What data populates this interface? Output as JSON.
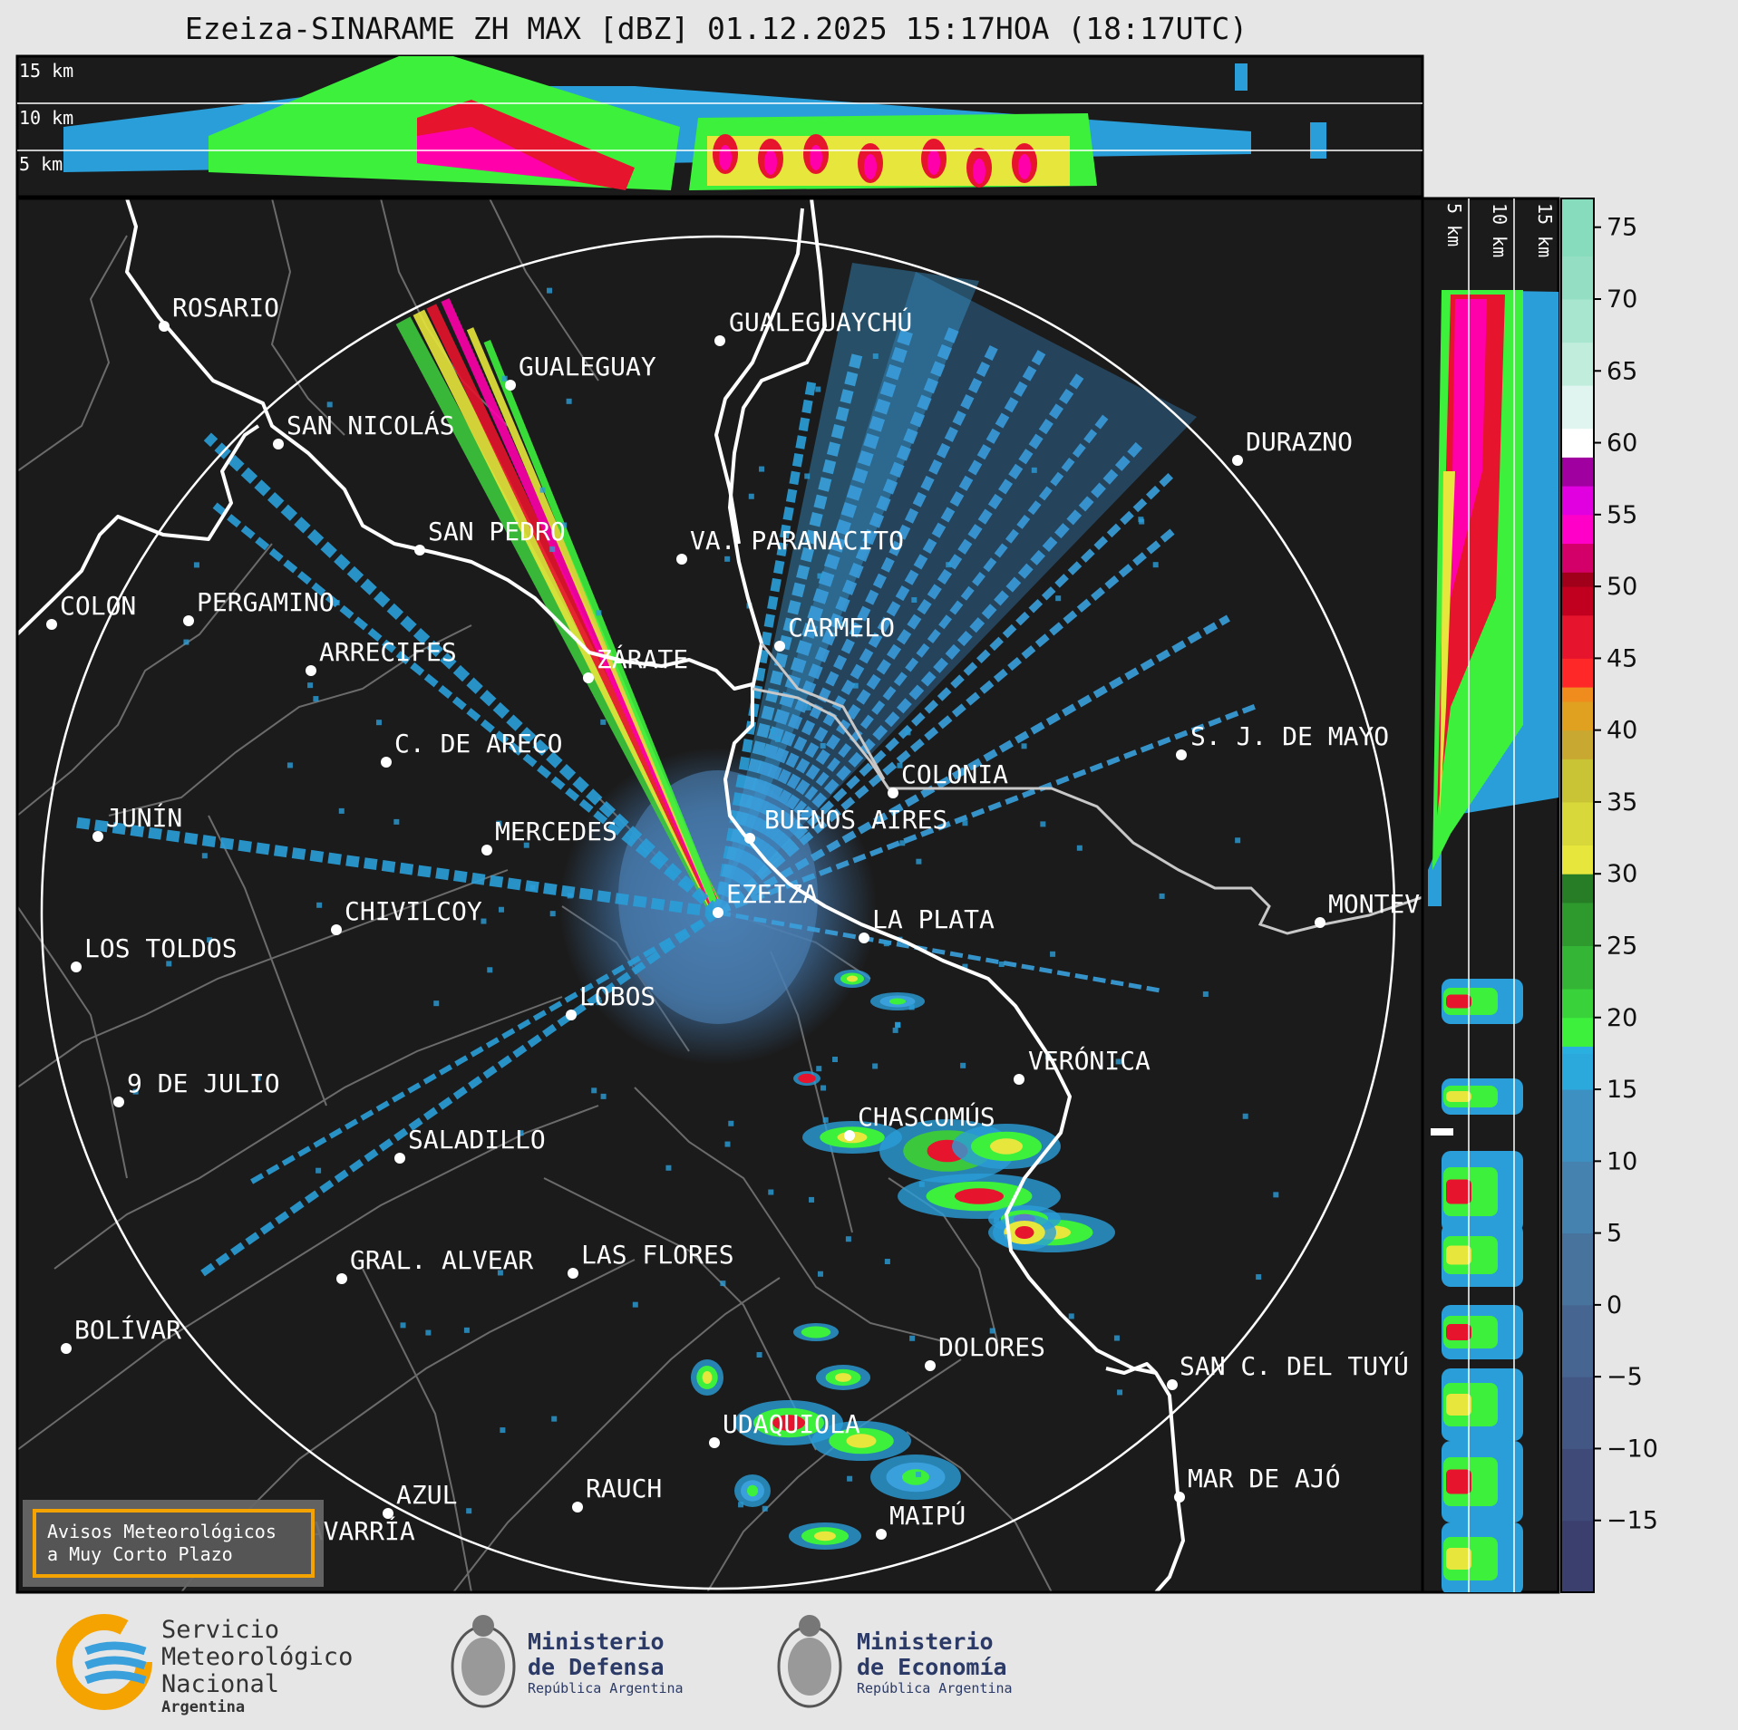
{
  "title": "Ezeiza-SINARAME ZH MAX [dBZ] 01.12.2025 15:17HOA (18:17UTC)",
  "top_panel": {
    "height_labels": [
      "15 km",
      "10 km",
      "5 km"
    ]
  },
  "side_panel": {
    "height_labels": [
      "5 km",
      "10 km",
      "15 km"
    ]
  },
  "colorbar": {
    "unit": "dBZ",
    "ticks": [
      "75",
      "70",
      "65",
      "60",
      "55",
      "50",
      "45",
      "40",
      "35",
      "30",
      "25",
      "20",
      "15",
      "10",
      "5",
      "0",
      "−5",
      "−10",
      "−15"
    ],
    "range": [
      -20,
      77
    ]
  },
  "cities": [
    "ROSARIO",
    "GUALEGUAYCHÚ",
    "GUALEGUAY",
    "SAN NICOLÁS",
    "DURAZNO",
    "SAN PEDRO",
    "VA. PARANACITO",
    "COLON",
    "PERGAMINO",
    "CARMELO",
    "ARRECIFES",
    "ZÁRATE",
    "S. J. DE MAYO",
    "C. DE ARECO",
    "COLONIA",
    "JUNÍN",
    "MERCEDES",
    "BUENOS AIRES",
    "EZEIZA",
    "MONTEV",
    "CHIVILCOY",
    "LA PLATA",
    "LOS TOLDOS",
    "LOBOS",
    "VERÓNICA",
    "9 DE JULIO",
    "CHASCOMÚS",
    "SALADILLO",
    "GRAL. ALVEAR",
    "LAS FLORES",
    "BOLÍVAR",
    "DOLORES",
    "SAN C. DEL TUYÚ",
    "UDAQUIOLA",
    "MAR DE AJÓ",
    "AZUL",
    "RAUCH",
    "OLAVARRÍA",
    "MAIPÚ"
  ],
  "warning_box": {
    "line1": "Avisos Meteorológicos",
    "line2": "a Muy Corto Plazo"
  },
  "footer": {
    "smn": {
      "line1": "Servicio",
      "line2": "Meteorológico",
      "line3": "Nacional",
      "line4": "Argentina"
    },
    "defensa": {
      "line1": "Ministerio",
      "line2": "de Defensa",
      "line3": "República Argentina"
    },
    "economia": {
      "line1": "Ministerio",
      "line2": "de Economía",
      "line3": "República Argentina"
    }
  },
  "colors": {
    "background": "#1b1b1b",
    "border": "#000000",
    "coast": "#ffffff",
    "accent_box": "#f5a300"
  }
}
